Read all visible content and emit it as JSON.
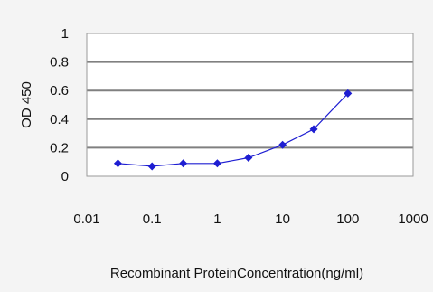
{
  "chart_data": {
    "type": "line",
    "title": "",
    "xlabel": "Recombinant ProteinConcentration(ng/ml)",
    "ylabel": "OD 450",
    "x_scale": "log",
    "xlim": [
      0.01,
      1000
    ],
    "ylim": [
      0,
      1
    ],
    "x_ticks": [
      0.01,
      0.1,
      1,
      10,
      100,
      1000
    ],
    "x_tick_labels": [
      "0.01",
      "0.1",
      "1",
      "10",
      "100",
      "1000"
    ],
    "y_ticks": [
      0,
      0.2,
      0.4,
      0.6,
      0.8,
      1
    ],
    "y_tick_labels": [
      "0",
      "0.2",
      "0.4",
      "0.6",
      "0.8",
      "1"
    ],
    "grid": "horizontal",
    "legend": "none",
    "series": [
      {
        "color": "#1e1ed2",
        "marker": "diamond",
        "x": [
          0.03,
          0.1,
          0.3,
          1,
          3,
          10,
          30,
          100
        ],
        "values": [
          0.09,
          0.07,
          0.09,
          0.09,
          0.13,
          0.22,
          0.33,
          0.58
        ]
      }
    ],
    "colors": {
      "plot_background": "#ffffff",
      "figure_background": "#f4f4f4",
      "gridline": "#808080",
      "series": "#1e1ed2"
    }
  }
}
